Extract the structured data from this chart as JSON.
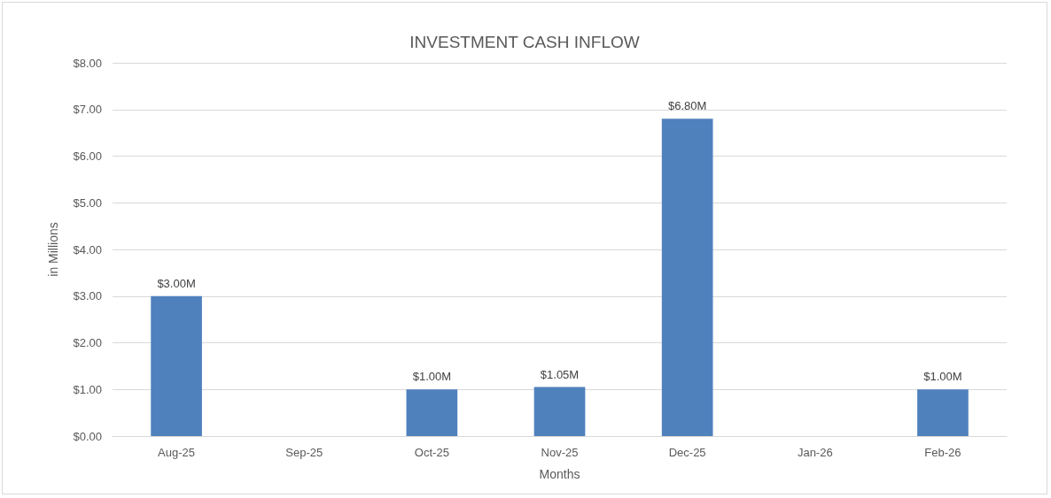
{
  "chart_data": {
    "type": "bar",
    "title": "INVESTMENT CASH INFLOW",
    "xlabel": "Months",
    "ylabel": "in Millions",
    "categories": [
      "Aug-25",
      "Sep-25",
      "Oct-25",
      "Nov-25",
      "Dec-25",
      "Jan-26",
      "Feb-26"
    ],
    "values": [
      3,
      null,
      1,
      1.05,
      6.8,
      null,
      1
    ],
    "value_labels": [
      "$3.00M",
      null,
      "$1.00M",
      "$1.05M",
      "$6.80M",
      null,
      "$1.00M"
    ],
    "color": "#4f81bd",
    "ylim": [
      0,
      8
    ],
    "yticks": [
      {
        "value": 0,
        "label": "$0.00"
      },
      {
        "value": 1,
        "label": "$1.00"
      },
      {
        "value": 2,
        "label": "$2.00"
      },
      {
        "value": 3,
        "label": "$3.00"
      },
      {
        "value": 4,
        "label": "$4.00"
      },
      {
        "value": 5,
        "label": "$5.00"
      },
      {
        "value": 6,
        "label": "$6.00"
      },
      {
        "value": 7,
        "label": "$7.00"
      },
      {
        "value": 8,
        "label": "$8.00"
      }
    ],
    "grid": "y"
  }
}
